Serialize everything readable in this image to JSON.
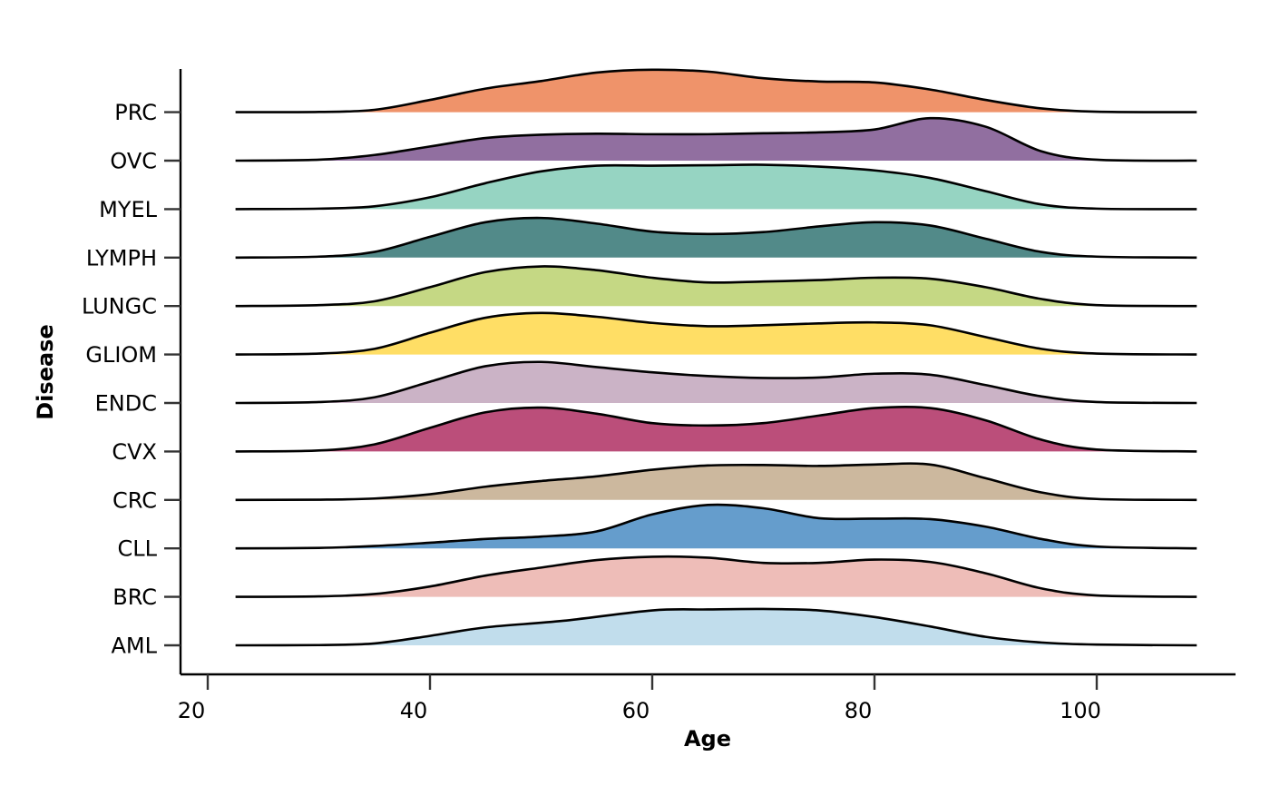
{
  "chart_data": {
    "type": "area",
    "subtype": "ridgeline",
    "xlabel": "Age",
    "ylabel": "Disease",
    "xlim": [
      17,
      114
    ],
    "x_ticks": [
      20,
      40,
      60,
      80,
      100
    ],
    "x_range_curves": [
      22.5,
      109
    ],
    "grid": false,
    "legend": "none",
    "categories": [
      "AML",
      "BRC",
      "CLL",
      "CRC",
      "CVX",
      "ENDC",
      "GLIOM",
      "LUNGC",
      "LYMPH",
      "MYEL",
      "OVC",
      "PRC"
    ],
    "series": [
      {
        "name": "AML",
        "color": "#c1ddec",
        "points": [
          [
            22.5,
            0
          ],
          [
            30,
            0.005
          ],
          [
            35,
            0.04
          ],
          [
            40,
            0.2
          ],
          [
            45,
            0.38
          ],
          [
            52,
            0.52
          ],
          [
            60,
            0.74
          ],
          [
            65,
            0.76
          ],
          [
            70,
            0.77
          ],
          [
            75,
            0.74
          ],
          [
            80,
            0.6
          ],
          [
            85,
            0.4
          ],
          [
            90,
            0.18
          ],
          [
            95,
            0.06
          ],
          [
            100,
            0.015
          ],
          [
            109,
            0
          ]
        ]
      },
      {
        "name": "BRC",
        "color": "#eebdb8",
        "points": [
          [
            22.5,
            0
          ],
          [
            30,
            0.01
          ],
          [
            35,
            0.06
          ],
          [
            40,
            0.22
          ],
          [
            45,
            0.45
          ],
          [
            50,
            0.62
          ],
          [
            55,
            0.78
          ],
          [
            60,
            0.85
          ],
          [
            65,
            0.83
          ],
          [
            70,
            0.72
          ],
          [
            75,
            0.72
          ],
          [
            80,
            0.79
          ],
          [
            85,
            0.74
          ],
          [
            90,
            0.5
          ],
          [
            95,
            0.18
          ],
          [
            100,
            0.03
          ],
          [
            109,
            0
          ]
        ]
      },
      {
        "name": "CLL",
        "color": "#659dcc",
        "points": [
          [
            22.5,
            0
          ],
          [
            30,
            0.01
          ],
          [
            35,
            0.05
          ],
          [
            40,
            0.12
          ],
          [
            45,
            0.2
          ],
          [
            50,
            0.25
          ],
          [
            55,
            0.36
          ],
          [
            60,
            0.72
          ],
          [
            65,
            0.92
          ],
          [
            70,
            0.85
          ],
          [
            75,
            0.64
          ],
          [
            80,
            0.63
          ],
          [
            85,
            0.62
          ],
          [
            90,
            0.46
          ],
          [
            95,
            0.2
          ],
          [
            100,
            0.04
          ],
          [
            109,
            0
          ]
        ]
      },
      {
        "name": "CRC",
        "color": "#ccb89e",
        "points": [
          [
            22.5,
            0
          ],
          [
            30,
            0.005
          ],
          [
            35,
            0.03
          ],
          [
            40,
            0.12
          ],
          [
            45,
            0.28
          ],
          [
            50,
            0.4
          ],
          [
            55,
            0.5
          ],
          [
            60,
            0.64
          ],
          [
            65,
            0.73
          ],
          [
            70,
            0.74
          ],
          [
            75,
            0.72
          ],
          [
            80,
            0.75
          ],
          [
            85,
            0.75
          ],
          [
            90,
            0.46
          ],
          [
            95,
            0.16
          ],
          [
            100,
            0.02
          ],
          [
            109,
            0
          ]
        ]
      },
      {
        "name": "CVX",
        "color": "#bb4e7a",
        "points": [
          [
            22.5,
            0
          ],
          [
            30,
            0.02
          ],
          [
            35,
            0.15
          ],
          [
            40,
            0.5
          ],
          [
            45,
            0.83
          ],
          [
            50,
            0.93
          ],
          [
            55,
            0.8
          ],
          [
            60,
            0.6
          ],
          [
            65,
            0.55
          ],
          [
            70,
            0.6
          ],
          [
            75,
            0.76
          ],
          [
            80,
            0.92
          ],
          [
            85,
            0.92
          ],
          [
            90,
            0.66
          ],
          [
            95,
            0.25
          ],
          [
            100,
            0.04
          ],
          [
            109,
            0
          ]
        ]
      },
      {
        "name": "ENDC",
        "color": "#cbb3c6",
        "points": [
          [
            22.5,
            0
          ],
          [
            30,
            0.02
          ],
          [
            35,
            0.12
          ],
          [
            40,
            0.45
          ],
          [
            45,
            0.78
          ],
          [
            50,
            0.87
          ],
          [
            55,
            0.76
          ],
          [
            60,
            0.65
          ],
          [
            65,
            0.57
          ],
          [
            70,
            0.53
          ],
          [
            75,
            0.54
          ],
          [
            80,
            0.62
          ],
          [
            85,
            0.6
          ],
          [
            90,
            0.38
          ],
          [
            95,
            0.14
          ],
          [
            100,
            0.02
          ],
          [
            109,
            0
          ]
        ]
      },
      {
        "name": "GLIOM",
        "color": "#ffde65",
        "points": [
          [
            22.5,
            0
          ],
          [
            30,
            0.02
          ],
          [
            35,
            0.12
          ],
          [
            40,
            0.46
          ],
          [
            45,
            0.78
          ],
          [
            50,
            0.88
          ],
          [
            55,
            0.8
          ],
          [
            60,
            0.67
          ],
          [
            65,
            0.6
          ],
          [
            70,
            0.62
          ],
          [
            75,
            0.66
          ],
          [
            80,
            0.68
          ],
          [
            85,
            0.62
          ],
          [
            90,
            0.37
          ],
          [
            95,
            0.12
          ],
          [
            100,
            0.02
          ],
          [
            109,
            0
          ]
        ]
      },
      {
        "name": "LUNGC",
        "color": "#c5d884",
        "points": [
          [
            22.5,
            0
          ],
          [
            30,
            0.02
          ],
          [
            35,
            0.1
          ],
          [
            40,
            0.4
          ],
          [
            45,
            0.72
          ],
          [
            50,
            0.84
          ],
          [
            55,
            0.76
          ],
          [
            60,
            0.6
          ],
          [
            65,
            0.5
          ],
          [
            70,
            0.52
          ],
          [
            75,
            0.55
          ],
          [
            80,
            0.6
          ],
          [
            85,
            0.58
          ],
          [
            90,
            0.4
          ],
          [
            95,
            0.15
          ],
          [
            100,
            0.02
          ],
          [
            109,
            0
          ]
        ]
      },
      {
        "name": "LYMPH",
        "color": "#528a89",
        "points": [
          [
            22.5,
            0
          ],
          [
            30,
            0.02
          ],
          [
            35,
            0.12
          ],
          [
            40,
            0.44
          ],
          [
            45,
            0.75
          ],
          [
            50,
            0.84
          ],
          [
            55,
            0.72
          ],
          [
            60,
            0.55
          ],
          [
            65,
            0.5
          ],
          [
            70,
            0.54
          ],
          [
            75,
            0.66
          ],
          [
            80,
            0.75
          ],
          [
            85,
            0.68
          ],
          [
            90,
            0.4
          ],
          [
            95,
            0.12
          ],
          [
            100,
            0.02
          ],
          [
            109,
            0
          ]
        ]
      },
      {
        "name": "MYEL",
        "color": "#96d4c2",
        "points": [
          [
            22.5,
            0
          ],
          [
            30,
            0.01
          ],
          [
            35,
            0.06
          ],
          [
            40,
            0.25
          ],
          [
            45,
            0.55
          ],
          [
            50,
            0.8
          ],
          [
            55,
            0.92
          ],
          [
            60,
            0.92
          ],
          [
            65,
            0.93
          ],
          [
            70,
            0.94
          ],
          [
            75,
            0.9
          ],
          [
            80,
            0.82
          ],
          [
            85,
            0.66
          ],
          [
            90,
            0.38
          ],
          [
            95,
            0.1
          ],
          [
            100,
            0.01
          ],
          [
            109,
            0
          ]
        ]
      },
      {
        "name": "OVC",
        "color": "#916fa0",
        "points": [
          [
            22.5,
            0
          ],
          [
            30,
            0.02
          ],
          [
            35,
            0.12
          ],
          [
            40,
            0.3
          ],
          [
            45,
            0.48
          ],
          [
            50,
            0.55
          ],
          [
            55,
            0.57
          ],
          [
            60,
            0.56
          ],
          [
            65,
            0.56
          ],
          [
            70,
            0.58
          ],
          [
            75,
            0.6
          ],
          [
            80,
            0.66
          ],
          [
            85,
            0.9
          ],
          [
            90,
            0.72
          ],
          [
            95,
            0.2
          ],
          [
            100,
            0.02
          ],
          [
            109,
            0
          ]
        ]
      },
      {
        "name": "PRC",
        "color": "#ef936a",
        "points": [
          [
            22.5,
            0
          ],
          [
            30,
            0.005
          ],
          [
            35,
            0.05
          ],
          [
            40,
            0.26
          ],
          [
            45,
            0.5
          ],
          [
            50,
            0.66
          ],
          [
            55,
            0.84
          ],
          [
            60,
            0.9
          ],
          [
            65,
            0.86
          ],
          [
            70,
            0.72
          ],
          [
            75,
            0.65
          ],
          [
            80,
            0.63
          ],
          [
            85,
            0.48
          ],
          [
            90,
            0.26
          ],
          [
            95,
            0.08
          ],
          [
            100,
            0.01
          ],
          [
            109,
            0
          ]
        ]
      }
    ]
  }
}
